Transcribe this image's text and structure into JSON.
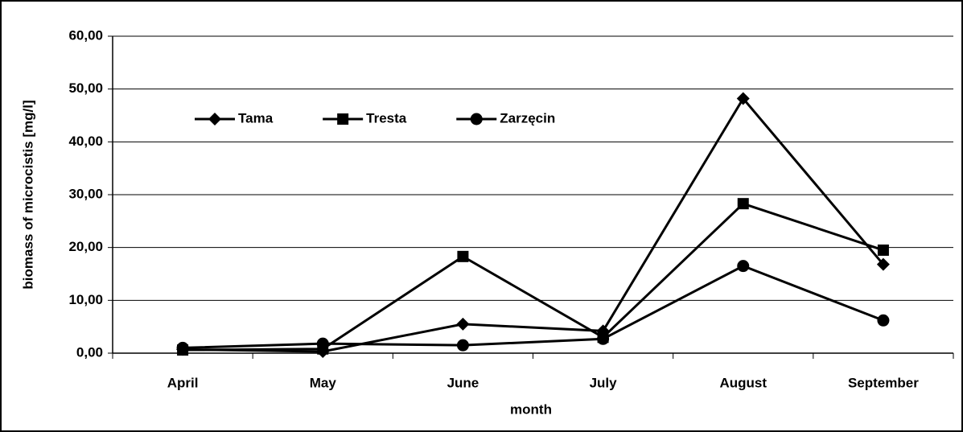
{
  "chart_data": {
    "type": "line",
    "y_label": "biomass of microcistis [mg/l]",
    "x_label": "month",
    "categories": [
      "April",
      "May",
      "June",
      "July",
      "August",
      "September"
    ],
    "series": [
      {
        "name": "Tama",
        "color": "#000000",
        "marker": "diamond",
        "values": [
          0.7,
          0.3,
          5.5,
          4.2,
          48.2,
          16.8
        ]
      },
      {
        "name": "Tresta",
        "color": "#000000",
        "marker": "square",
        "values": [
          0.6,
          0.8,
          18.3,
          3.0,
          28.3,
          19.5
        ]
      },
      {
        "name": "Zarzęcin",
        "color": "#000000",
        "marker": "circle",
        "values": [
          1.0,
          1.8,
          1.5,
          2.7,
          16.5,
          6.2
        ]
      }
    ],
    "ylim": [
      0,
      60
    ],
    "yticks": [
      {
        "value": 0,
        "label": "0,00"
      },
      {
        "value": 10,
        "label": "10,00"
      },
      {
        "value": 20,
        "label": "20,00"
      },
      {
        "value": 30,
        "label": "30,00"
      },
      {
        "value": 40,
        "label": "40,00"
      },
      {
        "value": 50,
        "label": "50,00"
      },
      {
        "value": 60,
        "label": "60,00"
      }
    ],
    "grid": true,
    "legend": "upper left"
  }
}
